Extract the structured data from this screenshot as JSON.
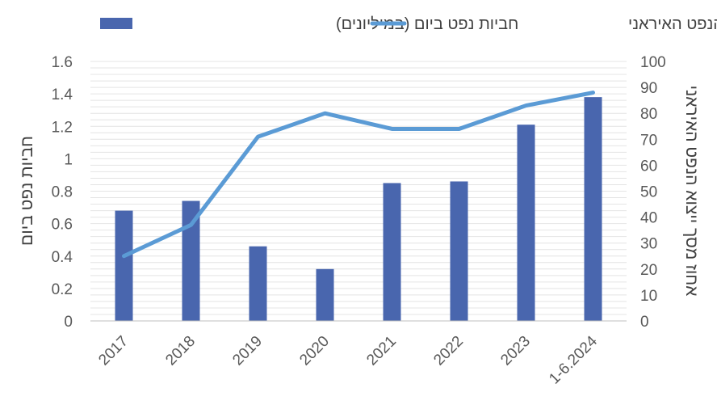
{
  "chart_data": {
    "type": "bar",
    "categories": [
      "2017",
      "2018",
      "2019",
      "2020",
      "2021",
      "2022",
      "2023",
      "1-6.2024"
    ],
    "series": [
      {
        "name": "חביות נפט ביום (במיליונים)",
        "type": "bar",
        "axis": "left",
        "color": "#4966AE",
        "values": [
          0.68,
          0.74,
          0.46,
          0.32,
          0.85,
          0.86,
          1.21,
          1.38
        ]
      },
      {
        "name": "אחוז מסך ייצוא הנפט האיראני",
        "type": "line",
        "axis": "right",
        "color": "#5B9BD5",
        "values": [
          25,
          37,
          71,
          80,
          74,
          74,
          83,
          88
        ]
      }
    ],
    "y_left": {
      "label": "חביות נפט ביום",
      "ylim": [
        0,
        1.6
      ],
      "ticks": [
        "0",
        "0.2",
        "0.4",
        "0.6",
        "0.8",
        "1",
        "1.2",
        "1.4",
        "1.6"
      ]
    },
    "y_right": {
      "label": "אחוז מסך ייצוא הנפט האיראני",
      "ylim": [
        0,
        100
      ],
      "ticks": [
        "0",
        "10",
        "20",
        "30",
        "40",
        "50",
        "60",
        "70",
        "80",
        "90",
        "100"
      ]
    },
    "grid": true,
    "legend_position": "top"
  }
}
